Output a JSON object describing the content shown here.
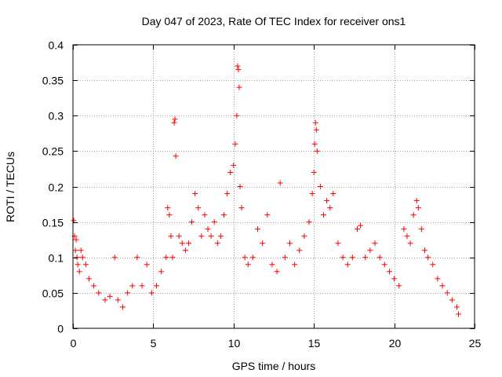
{
  "chart_data": {
    "type": "scatter",
    "title": "Day 047 of 2023, Rate Of TEC Index for receiver ons1",
    "xlabel": "GPS time / hours",
    "ylabel": "ROTI / TECUs",
    "xlim": [
      0,
      25
    ],
    "ylim": [
      0,
      0.4
    ],
    "x_ticks": [
      0,
      5,
      10,
      15,
      20,
      25
    ],
    "x_tick_labels": [
      "0",
      "5",
      "10",
      "15",
      "20",
      "25"
    ],
    "y_ticks": [
      0,
      0.05,
      0.1,
      0.15,
      0.2,
      0.25,
      0.3,
      0.35,
      0.4
    ],
    "y_tick_labels": [
      "0",
      "0.05",
      "0.1",
      "0.15",
      "0.2",
      "0.25",
      "0.3",
      "0.35",
      "0.4"
    ],
    "grid": true,
    "marker": "+",
    "color": "#ff0000",
    "series": [
      {
        "x": [
          0.05,
          0.1,
          0.15,
          0.2,
          0.25,
          0.3,
          0.4,
          0.5,
          0.6,
          0.8,
          1.0,
          1.3,
          1.6,
          2.0,
          2.3,
          2.6,
          2.8,
          3.1,
          3.4,
          3.7,
          4.0,
          4.3,
          4.6,
          4.9,
          5.2,
          5.5,
          5.8,
          5.9,
          6.0,
          6.1,
          6.2,
          6.3,
          6.35,
          6.4,
          6.6,
          6.8,
          7.0,
          7.2,
          7.4,
          7.6,
          7.8,
          8.0,
          8.2,
          8.4,
          8.6,
          8.8,
          9.0,
          9.2,
          9.4,
          9.6,
          9.8,
          10.0,
          10.1,
          10.2,
          10.25,
          10.3,
          10.35,
          10.4,
          10.5,
          10.7,
          10.9,
          11.2,
          11.5,
          11.8,
          12.1,
          12.4,
          12.7,
          12.9,
          13.2,
          13.5,
          13.8,
          14.1,
          14.4,
          14.7,
          14.9,
          15.0,
          15.05,
          15.1,
          15.15,
          15.2,
          15.4,
          15.6,
          15.8,
          16.0,
          16.2,
          16.5,
          16.8,
          17.1,
          17.4,
          17.7,
          17.9,
          18.2,
          18.5,
          18.8,
          19.1,
          19.4,
          19.7,
          20.0,
          20.3,
          20.6,
          20.8,
          21.0,
          21.2,
          21.4,
          21.5,
          21.7,
          21.9,
          22.1,
          22.4,
          22.7,
          23.0,
          23.3,
          23.6,
          23.9,
          24.0
        ],
        "y": [
          0.152,
          0.13,
          0.11,
          0.125,
          0.1,
          0.09,
          0.08,
          0.11,
          0.1,
          0.09,
          0.07,
          0.06,
          0.05,
          0.04,
          0.045,
          0.1,
          0.04,
          0.03,
          0.05,
          0.06,
          0.1,
          0.06,
          0.09,
          0.05,
          0.06,
          0.08,
          0.1,
          0.17,
          0.16,
          0.13,
          0.1,
          0.29,
          0.295,
          0.243,
          0.13,
          0.12,
          0.11,
          0.12,
          0.15,
          0.19,
          0.17,
          0.13,
          0.16,
          0.14,
          0.13,
          0.15,
          0.12,
          0.13,
          0.16,
          0.19,
          0.22,
          0.23,
          0.26,
          0.3,
          0.37,
          0.365,
          0.34,
          0.2,
          0.17,
          0.1,
          0.09,
          0.1,
          0.14,
          0.12,
          0.16,
          0.09,
          0.08,
          0.205,
          0.1,
          0.12,
          0.09,
          0.11,
          0.13,
          0.15,
          0.19,
          0.22,
          0.26,
          0.29,
          0.28,
          0.25,
          0.2,
          0.16,
          0.18,
          0.17,
          0.19,
          0.12,
          0.1,
          0.09,
          0.1,
          0.14,
          0.145,
          0.1,
          0.11,
          0.12,
          0.1,
          0.09,
          0.08,
          0.07,
          0.06,
          0.14,
          0.13,
          0.12,
          0.16,
          0.18,
          0.17,
          0.14,
          0.11,
          0.1,
          0.09,
          0.07,
          0.06,
          0.05,
          0.04,
          0.03,
          0.02
        ]
      }
    ]
  }
}
